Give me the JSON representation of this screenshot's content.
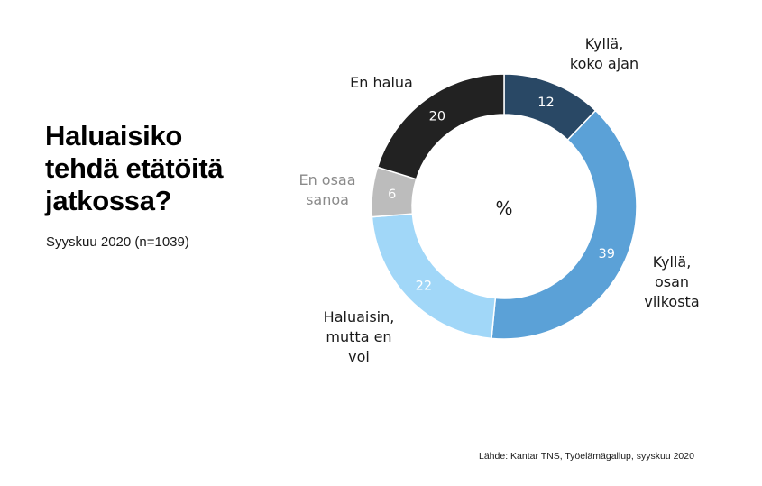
{
  "title": "Haluaisiko\ntehdä etätöitä\njatkossa?",
  "subtitle": "Syyskuu 2020 (n=1039)",
  "source": "Lähde: Kantar TNS, Työelämägallup, syyskuu 2020",
  "chart_data": {
    "type": "pie",
    "variant": "donut",
    "center_label": "%",
    "start": "top",
    "direction": "clockwise",
    "slices": [
      {
        "label": "Kyllä,\nkoko ajan",
        "value": 12,
        "color": "#294865",
        "value_color": "#ffffff",
        "label_color": "#1a1a1a"
      },
      {
        "label": "Kyllä,\nosan\nviikosta",
        "value": 39,
        "color": "#5ba1d7",
        "value_color": "#ffffff",
        "label_color": "#1a1a1a"
      },
      {
        "label": "Haluaisin,\nmutta en\nvoi",
        "value": 22,
        "color": "#a1d7f8",
        "value_color": "#ffffff",
        "label_color": "#1a1a1a"
      },
      {
        "label": "En osaa\nsanoa",
        "value": 6,
        "color": "#bcbcbc",
        "value_color": "#ffffff",
        "label_color": "#8a8a8a"
      },
      {
        "label": "En halua",
        "value": 20,
        "color": "#222222",
        "value_color": "#ffffff",
        "label_color": "#1a1a1a"
      }
    ]
  }
}
